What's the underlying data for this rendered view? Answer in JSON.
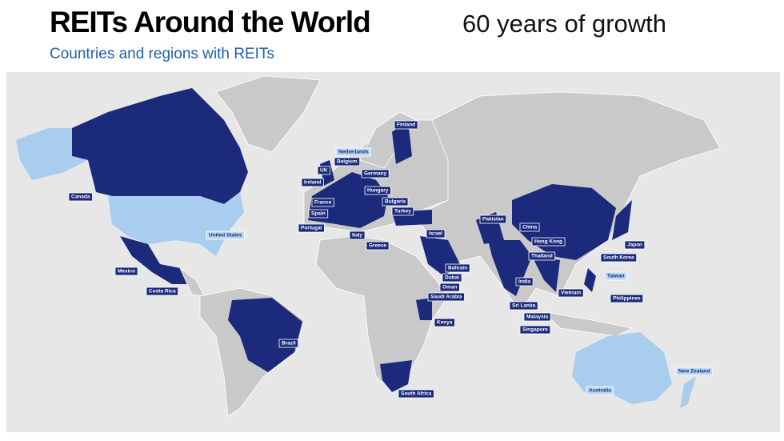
{
  "header": {
    "title": "REITs Around the World",
    "tagline": "60 years of growth",
    "subtitle": "Countries and regions with REITs"
  },
  "map": {
    "labels": [
      "Finland",
      "Netherlands",
      "Belgium",
      "Germany",
      "UK",
      "Ireland",
      "Hungary",
      "France",
      "Bulgaria",
      "Spain",
      "Turkey",
      "Portugal",
      "Italy",
      "Greece",
      "Israel",
      "Pakistan",
      "China",
      "Hong Kong",
      "Japan",
      "South Korea",
      "Thailand",
      "Taiwan",
      "Bahrain",
      "Dubai",
      "Oman",
      "Saudi Arabia",
      "India",
      "Vietnam",
      "Philippines",
      "Sri Lanka",
      "Malaysia",
      "Singapore",
      "Kenya",
      "Canada",
      "United States",
      "Mexico",
      "Costa Rica",
      "Brazil",
      "South Africa",
      "Australia",
      "New Zealand"
    ]
  }
}
